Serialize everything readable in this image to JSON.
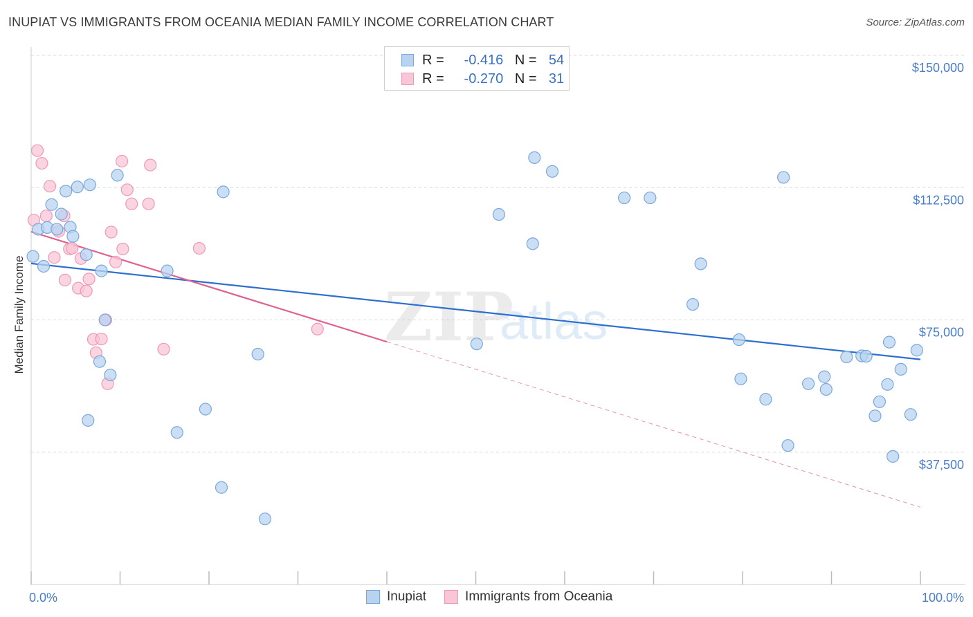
{
  "title": "INUPIAT VS IMMIGRANTS FROM OCEANIA MEDIAN FAMILY INCOME CORRELATION CHART",
  "source": "Source: ZipAtlas.com",
  "watermark": {
    "zip": "ZIP",
    "atlas": "atlas"
  },
  "legend": {
    "rows": [
      {
        "r_label": "R =",
        "r_value": "-0.416",
        "n_label": "N =",
        "n_value": "54"
      },
      {
        "r_label": "R =",
        "r_value": "-0.270",
        "n_label": "N =",
        "n_value": "31"
      }
    ]
  },
  "bottom_legend": {
    "series1": "Inupiat",
    "series2": "Immigrants from Oceania"
  },
  "colors": {
    "blue_fill": "#b8d3f0",
    "blue_stroke": "#7aa8de",
    "blue_line": "#2c6fcf",
    "pink_fill": "#f8c6d6",
    "pink_stroke": "#ee9ab5",
    "pink_line": "#e06090",
    "grid": "#d9d9d9",
    "tick_text": "#4a7cc7"
  },
  "chart_data": {
    "type": "scatter",
    "title": "INUPIAT VS IMMIGRANTS FROM OCEANIA MEDIAN FAMILY INCOME CORRELATION CHART",
    "xlabel": "",
    "ylabel": "Median Family Income",
    "xlim": [
      0,
      100
    ],
    "ylim": [
      0,
      150000
    ],
    "x_tick_labels": [
      "0.0%",
      "100.0%"
    ],
    "y_ticks": [
      37500,
      75000,
      112500,
      150000
    ],
    "y_tick_labels": [
      "$37,500",
      "$75,000",
      "$112,500",
      "$150,000"
    ],
    "series": [
      {
        "name": "Inupiat",
        "r": -0.416,
        "n": 54,
        "trend": {
          "x": [
            0,
            100
          ],
          "y": [
            91000,
            63800
          ]
        },
        "points": [
          {
            "x": 0.2,
            "y": 93000
          },
          {
            "x": 0.8,
            "y": 100700
          },
          {
            "x": 1.4,
            "y": 90200
          },
          {
            "x": 1.8,
            "y": 101200
          },
          {
            "x": 2.3,
            "y": 107700
          },
          {
            "x": 2.9,
            "y": 100700
          },
          {
            "x": 3.4,
            "y": 105000
          },
          {
            "x": 3.9,
            "y": 111500
          },
          {
            "x": 4.4,
            "y": 101300
          },
          {
            "x": 4.7,
            "y": 98700
          },
          {
            "x": 5.2,
            "y": 112700
          },
          {
            "x": 6.2,
            "y": 93500
          },
          {
            "x": 6.4,
            "y": 46500
          },
          {
            "x": 6.6,
            "y": 113300
          },
          {
            "x": 7.7,
            "y": 63200
          },
          {
            "x": 7.9,
            "y": 88900
          },
          {
            "x": 8.3,
            "y": 75000
          },
          {
            "x": 8.9,
            "y": 59400
          },
          {
            "x": 9.7,
            "y": 116000
          },
          {
            "x": 15.3,
            "y": 88900
          },
          {
            "x": 16.4,
            "y": 43100
          },
          {
            "x": 19.6,
            "y": 49700
          },
          {
            "x": 21.4,
            "y": 27500
          },
          {
            "x": 21.6,
            "y": 111300
          },
          {
            "x": 25.5,
            "y": 65300
          },
          {
            "x": 26.3,
            "y": 18600
          },
          {
            "x": 50.1,
            "y": 68200
          },
          {
            "x": 52.6,
            "y": 104900
          },
          {
            "x": 56.4,
            "y": 96600
          },
          {
            "x": 56.6,
            "y": 121000
          },
          {
            "x": 58.6,
            "y": 117100
          },
          {
            "x": 66.7,
            "y": 109600
          },
          {
            "x": 69.6,
            "y": 109600
          },
          {
            "x": 75.3,
            "y": 90900
          },
          {
            "x": 74.4,
            "y": 79400
          },
          {
            "x": 79.6,
            "y": 69400
          },
          {
            "x": 79.8,
            "y": 58300
          },
          {
            "x": 82.6,
            "y": 52500
          },
          {
            "x": 84.6,
            "y": 115400
          },
          {
            "x": 85.1,
            "y": 39400
          },
          {
            "x": 87.4,
            "y": 56900
          },
          {
            "x": 89.2,
            "y": 58900
          },
          {
            "x": 89.4,
            "y": 55300
          },
          {
            "x": 91.7,
            "y": 64500
          },
          {
            "x": 93.4,
            "y": 64800
          },
          {
            "x": 93.9,
            "y": 64700
          },
          {
            "x": 94.9,
            "y": 47800
          },
          {
            "x": 95.4,
            "y": 51800
          },
          {
            "x": 96.3,
            "y": 56700
          },
          {
            "x": 96.5,
            "y": 68700
          },
          {
            "x": 96.9,
            "y": 36300
          },
          {
            "x": 97.8,
            "y": 61000
          },
          {
            "x": 98.9,
            "y": 48200
          },
          {
            "x": 99.6,
            "y": 66400
          }
        ]
      },
      {
        "name": "Immigrants from Oceania",
        "r": -0.27,
        "n": 31,
        "trend": {
          "x": [
            0,
            40
          ],
          "y": [
            100000,
            68800
          ]
        },
        "trend_dashed": {
          "x": [
            40,
            100
          ],
          "y": [
            68800,
            21900
          ]
        },
        "points": [
          {
            "x": 0.3,
            "y": 103300
          },
          {
            "x": 0.7,
            "y": 123000
          },
          {
            "x": 1.2,
            "y": 119400
          },
          {
            "x": 1.7,
            "y": 104500
          },
          {
            "x": 2.1,
            "y": 112900
          },
          {
            "x": 2.6,
            "y": 92700
          },
          {
            "x": 3.1,
            "y": 100100
          },
          {
            "x": 3.7,
            "y": 104500
          },
          {
            "x": 3.8,
            "y": 86300
          },
          {
            "x": 4.3,
            "y": 95100
          },
          {
            "x": 4.6,
            "y": 95300
          },
          {
            "x": 5.3,
            "y": 84000
          },
          {
            "x": 5.6,
            "y": 92400
          },
          {
            "x": 6.2,
            "y": 83200
          },
          {
            "x": 6.5,
            "y": 86600
          },
          {
            "x": 7.0,
            "y": 69500
          },
          {
            "x": 7.3,
            "y": 65700
          },
          {
            "x": 7.9,
            "y": 69600
          },
          {
            "x": 8.4,
            "y": 75000
          },
          {
            "x": 8.6,
            "y": 56900
          },
          {
            "x": 9.0,
            "y": 99900
          },
          {
            "x": 9.5,
            "y": 91400
          },
          {
            "x": 10.2,
            "y": 120000
          },
          {
            "x": 10.3,
            "y": 95100
          },
          {
            "x": 10.8,
            "y": 111900
          },
          {
            "x": 11.3,
            "y": 107900
          },
          {
            "x": 13.2,
            "y": 107900
          },
          {
            "x": 13.4,
            "y": 118900
          },
          {
            "x": 14.9,
            "y": 66700
          },
          {
            "x": 18.9,
            "y": 95300
          },
          {
            "x": 32.2,
            "y": 72400
          }
        ]
      }
    ]
  }
}
